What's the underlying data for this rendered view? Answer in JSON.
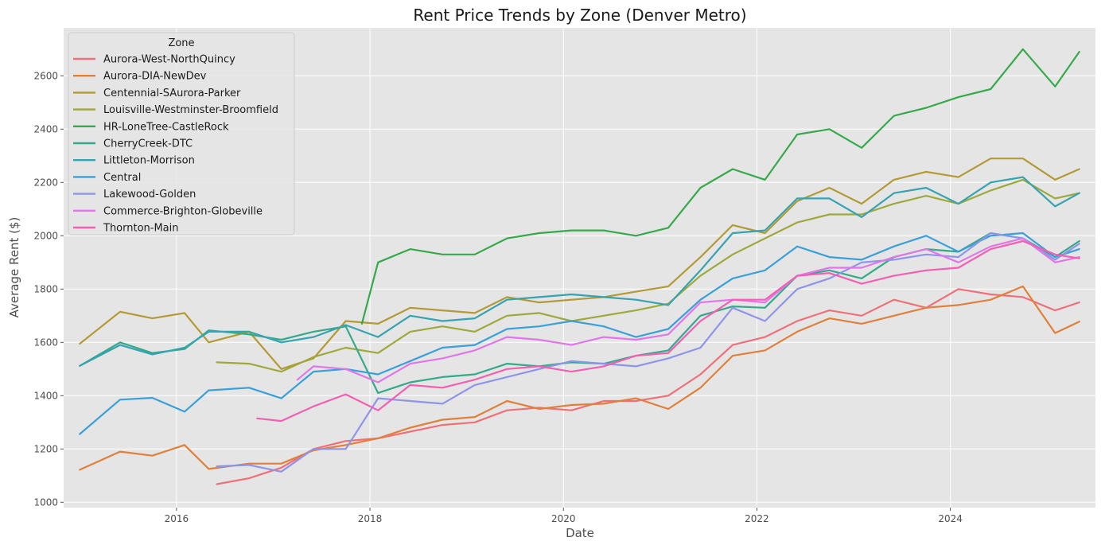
{
  "chart_data": {
    "type": "line",
    "title": "Rent Price Trends by Zone (Denver Metro)",
    "xlabel": "Date",
    "ylabel": "Average Rent ($)",
    "xlim": [
      "2014-11-01",
      "2025-07-01"
    ],
    "ylim": [
      980,
      2780
    ],
    "x_ticks": [
      "2016",
      "2018",
      "2020",
      "2022",
      "2024"
    ],
    "y_ticks": [
      1000,
      1200,
      1400,
      1600,
      1800,
      2000,
      2200,
      2400,
      2600
    ],
    "grid": true,
    "legend": {
      "title": "Zone",
      "position": "upper-left"
    },
    "series": [
      {
        "name": "Aurora-West-NorthQuincy",
        "color": "#f0707a",
        "x": [
          "2016-06",
          "2016-10",
          "2017-02",
          "2017-06",
          "2017-10",
          "2018-02",
          "2018-06",
          "2018-10",
          "2019-02",
          "2019-06",
          "2019-10",
          "2020-02",
          "2020-06",
          "2020-10",
          "2021-02",
          "2021-06",
          "2021-10",
          "2022-02",
          "2022-06",
          "2022-10",
          "2023-02",
          "2023-06",
          "2023-10",
          "2024-02",
          "2024-06",
          "2024-10",
          "2025-02",
          "2025-05"
        ],
        "values": [
          1068,
          1090,
          1130,
          1200,
          1230,
          1240,
          1265,
          1290,
          1300,
          1345,
          1355,
          1345,
          1380,
          1380,
          1400,
          1480,
          1590,
          1620,
          1680,
          1720,
          1700,
          1760,
          1730,
          1800,
          1780,
          1770,
          1720,
          1750
        ]
      },
      {
        "name": "Aurora-DIA-NewDev",
        "color": "#e0803a",
        "x": [
          "2015-01",
          "2015-06",
          "2015-10",
          "2016-02",
          "2016-05",
          "2016-10",
          "2017-02",
          "2017-06",
          "2017-10",
          "2018-02",
          "2018-06",
          "2018-10",
          "2019-02",
          "2019-06",
          "2019-10",
          "2020-02",
          "2020-06",
          "2020-10",
          "2021-02",
          "2021-06",
          "2021-10",
          "2022-02",
          "2022-06",
          "2022-10",
          "2023-02",
          "2023-06",
          "2023-10",
          "2024-02",
          "2024-06",
          "2024-10",
          "2025-02",
          "2025-05"
        ],
        "values": [
          1122,
          1190,
          1175,
          1215,
          1125,
          1145,
          1145,
          1195,
          1215,
          1240,
          1280,
          1310,
          1320,
          1380,
          1350,
          1365,
          1370,
          1390,
          1350,
          1430,
          1550,
          1570,
          1640,
          1690,
          1670,
          1700,
          1730,
          1740,
          1760,
          1810,
          1635,
          1678
        ]
      },
      {
        "name": "Centennial-SAurora-Parker",
        "color": "#b39a35",
        "x": [
          "2015-01",
          "2015-06",
          "2015-10",
          "2016-02",
          "2016-05",
          "2016-10",
          "2017-02",
          "2017-06",
          "2017-10",
          "2018-02",
          "2018-06",
          "2018-10",
          "2019-02",
          "2019-06",
          "2019-10",
          "2020-02",
          "2020-06",
          "2020-10",
          "2021-02",
          "2021-06",
          "2021-10",
          "2022-02",
          "2022-06",
          "2022-10",
          "2023-02",
          "2023-06",
          "2023-10",
          "2024-02",
          "2024-06",
          "2024-10",
          "2025-02",
          "2025-05"
        ],
        "values": [
          1595,
          1715,
          1690,
          1710,
          1600,
          1640,
          1500,
          1540,
          1680,
          1670,
          1730,
          1720,
          1710,
          1770,
          1750,
          1760,
          1770,
          1790,
          1810,
          1920,
          2040,
          2010,
          2130,
          2180,
          2120,
          2210,
          2240,
          2220,
          2290,
          2290,
          2210,
          2250
        ]
      },
      {
        "name": "Louisville-Westminster-Broomfield",
        "color": "#9fa83a",
        "x": [
          "2016-06",
          "2016-10",
          "2017-02",
          "2017-06",
          "2017-10",
          "2018-02",
          "2018-06",
          "2018-10",
          "2019-02",
          "2019-06",
          "2019-10",
          "2020-02",
          "2020-06",
          "2020-10",
          "2021-02",
          "2021-06",
          "2021-10",
          "2022-02",
          "2022-06",
          "2022-10",
          "2023-02",
          "2023-06",
          "2023-10",
          "2024-02",
          "2024-06",
          "2024-10",
          "2025-02",
          "2025-05"
        ],
        "values": [
          1525,
          1520,
          1490,
          1545,
          1580,
          1560,
          1640,
          1660,
          1640,
          1700,
          1710,
          1680,
          1700,
          1720,
          1745,
          1850,
          1930,
          1990,
          2050,
          2080,
          2080,
          2120,
          2150,
          2120,
          2170,
          2210,
          2140,
          2160
        ]
      },
      {
        "name": "HR-LoneTree-CastleRock",
        "color": "#36a94b",
        "x": [
          "2017-12",
          "2018-02",
          "2018-06",
          "2018-10",
          "2019-02",
          "2019-06",
          "2019-10",
          "2020-02",
          "2020-06",
          "2020-10",
          "2021-02",
          "2021-06",
          "2021-10",
          "2022-02",
          "2022-06",
          "2022-10",
          "2023-02",
          "2023-06",
          "2023-10",
          "2024-02",
          "2024-06",
          "2024-10",
          "2025-02",
          "2025-05"
        ],
        "values": [
          1670,
          1900,
          1950,
          1930,
          1930,
          1990,
          2010,
          2020,
          2020,
          2000,
          2030,
          2180,
          2250,
          2210,
          2380,
          2400,
          2330,
          2450,
          2480,
          2520,
          2550,
          2700,
          2560,
          2690
        ]
      },
      {
        "name": "CherryCreek-DTC",
        "color": "#35a98a",
        "x": [
          "2015-01",
          "2015-06",
          "2015-10",
          "2016-02",
          "2016-05",
          "2016-10",
          "2017-02",
          "2017-06",
          "2017-10",
          "2018-02",
          "2018-06",
          "2018-10",
          "2019-02",
          "2019-06",
          "2019-10",
          "2020-02",
          "2020-06",
          "2020-10",
          "2021-02",
          "2021-06",
          "2021-10",
          "2022-02",
          "2022-06",
          "2022-10",
          "2023-02",
          "2023-06",
          "2023-10",
          "2024-02",
          "2024-06",
          "2024-10",
          "2025-02",
          "2025-05"
        ],
        "values": [
          1512,
          1600,
          1560,
          1575,
          1645,
          1630,
          1610,
          1640,
          1660,
          1410,
          1450,
          1470,
          1480,
          1520,
          1510,
          1525,
          1520,
          1550,
          1570,
          1700,
          1735,
          1730,
          1850,
          1870,
          1840,
          1920,
          1950,
          1940,
          2010,
          1990,
          1920,
          1980
        ]
      },
      {
        "name": "Littleton-Morrison",
        "color": "#35a3b0",
        "x": [
          "2015-01",
          "2015-06",
          "2015-10",
          "2016-02",
          "2016-05",
          "2016-10",
          "2017-02",
          "2017-06",
          "2017-10",
          "2018-02",
          "2018-06",
          "2018-10",
          "2019-02",
          "2019-06",
          "2019-10",
          "2020-02",
          "2020-06",
          "2020-10",
          "2021-02",
          "2021-06",
          "2021-10",
          "2022-02",
          "2022-06",
          "2022-10",
          "2023-02",
          "2023-06",
          "2023-10",
          "2024-02",
          "2024-06",
          "2024-10",
          "2025-02",
          "2025-05"
        ],
        "values": [
          1512,
          1590,
          1555,
          1580,
          1640,
          1640,
          1600,
          1620,
          1665,
          1620,
          1700,
          1680,
          1690,
          1760,
          1770,
          1780,
          1770,
          1760,
          1740,
          1870,
          2010,
          2020,
          2140,
          2140,
          2070,
          2160,
          2180,
          2120,
          2200,
          2220,
          2110,
          2160
        ]
      },
      {
        "name": "Central",
        "color": "#3aa0d8",
        "x": [
          "2015-01",
          "2015-06",
          "2015-10",
          "2016-02",
          "2016-05",
          "2016-10",
          "2017-02",
          "2017-06",
          "2017-10",
          "2018-02",
          "2018-06",
          "2018-10",
          "2019-02",
          "2019-06",
          "2019-10",
          "2020-02",
          "2020-06",
          "2020-10",
          "2021-02",
          "2021-06",
          "2021-10",
          "2022-02",
          "2022-06",
          "2022-10",
          "2023-02",
          "2023-06",
          "2023-10",
          "2024-02",
          "2024-06",
          "2024-10",
          "2025-02",
          "2025-05"
        ],
        "values": [
          1256,
          1385,
          1392,
          1340,
          1420,
          1430,
          1390,
          1490,
          1500,
          1480,
          1530,
          1580,
          1590,
          1650,
          1660,
          1680,
          1660,
          1620,
          1650,
          1760,
          1840,
          1870,
          1960,
          1920,
          1910,
          1960,
          2000,
          1940,
          2000,
          2010,
          1920,
          1950
        ]
      },
      {
        "name": "Lakewood-Golden",
        "color": "#8e95e8",
        "x": [
          "2016-06",
          "2016-10",
          "2017-02",
          "2017-06",
          "2017-10",
          "2018-02",
          "2018-06",
          "2018-10",
          "2019-02",
          "2019-06",
          "2019-10",
          "2020-02",
          "2020-06",
          "2020-10",
          "2021-02",
          "2021-06",
          "2021-10",
          "2022-02",
          "2022-06",
          "2022-10",
          "2023-02",
          "2023-06",
          "2023-10",
          "2024-02",
          "2024-06",
          "2024-10",
          "2025-02",
          "2025-05"
        ],
        "values": [
          1135,
          1140,
          1115,
          1200,
          1200,
          1390,
          1380,
          1370,
          1440,
          1470,
          1500,
          1530,
          1520,
          1510,
          1540,
          1580,
          1730,
          1680,
          1800,
          1840,
          1900,
          1910,
          1930,
          1920,
          2010,
          1990,
          1910,
          1970
        ]
      },
      {
        "name": "Commerce-Brighton-Globeville",
        "color": "#e076e8",
        "x": [
          "2017-04",
          "2017-06",
          "2017-10",
          "2018-02",
          "2018-06",
          "2018-10",
          "2019-02",
          "2019-06",
          "2019-10",
          "2020-02",
          "2020-06",
          "2020-10",
          "2021-02",
          "2021-06",
          "2021-10",
          "2022-02",
          "2022-06",
          "2022-10",
          "2023-02",
          "2023-06",
          "2023-10",
          "2024-02",
          "2024-06",
          "2024-10",
          "2025-02",
          "2025-05"
        ],
        "values": [
          1460,
          1510,
          1500,
          1450,
          1520,
          1540,
          1570,
          1620,
          1610,
          1590,
          1620,
          1610,
          1630,
          1750,
          1760,
          1750,
          1850,
          1880,
          1880,
          1920,
          1950,
          1900,
          1960,
          1990,
          1900,
          1920
        ]
      },
      {
        "name": "Thornton-Main",
        "color": "#f25fb3",
        "x": [
          "2016-11",
          "2017-02",
          "2017-06",
          "2017-10",
          "2018-02",
          "2018-06",
          "2018-10",
          "2019-02",
          "2019-06",
          "2019-10",
          "2020-02",
          "2020-06",
          "2020-10",
          "2021-02",
          "2021-06",
          "2021-10",
          "2022-02",
          "2022-06",
          "2022-10",
          "2023-02",
          "2023-06",
          "2023-10",
          "2024-02",
          "2024-06",
          "2024-10",
          "2025-02",
          "2025-05"
        ],
        "values": [
          1315,
          1305,
          1360,
          1405,
          1345,
          1440,
          1430,
          1460,
          1500,
          1510,
          1490,
          1510,
          1550,
          1560,
          1680,
          1760,
          1760,
          1850,
          1860,
          1820,
          1850,
          1870,
          1880,
          1950,
          1980,
          1930,
          1915
        ]
      }
    ]
  }
}
